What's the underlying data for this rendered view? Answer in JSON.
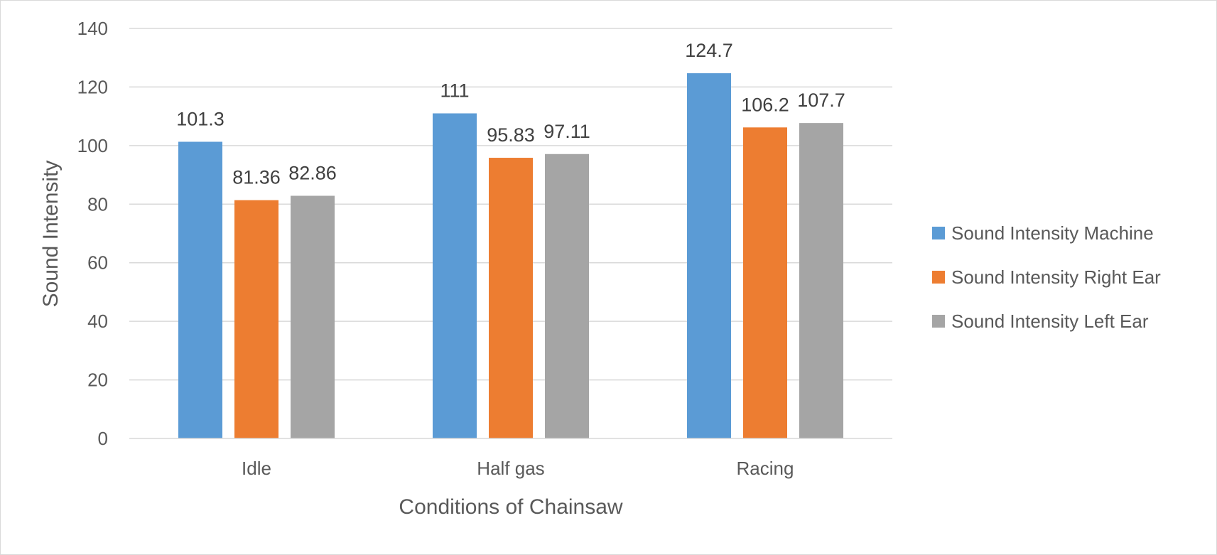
{
  "chart_data": {
    "type": "bar",
    "title": "",
    "xlabel": "Conditions of Chainsaw",
    "ylabel": "Sound Intensity",
    "categories": [
      "Idle",
      "Half gas",
      "Racing"
    ],
    "series": [
      {
        "name": "Sound Intensity Machine",
        "color": "#5b9bd5",
        "values": [
          101.3,
          111,
          124.7
        ],
        "labels": [
          "101.3",
          "111",
          "124.7"
        ]
      },
      {
        "name": "Sound Intensity Right Ear",
        "color": "#ed7d31",
        "values": [
          81.36,
          95.83,
          106.2
        ],
        "labels": [
          "81.36",
          "95.83",
          "106.2"
        ]
      },
      {
        "name": "Sound Intensity Left Ear",
        "color": "#a5a5a5",
        "values": [
          82.86,
          97.11,
          107.7
        ],
        "labels": [
          "82.86",
          "97.11",
          "107.7"
        ]
      }
    ],
    "ylim": [
      0,
      140
    ],
    "yticks": [
      0,
      20,
      40,
      60,
      80,
      100,
      120,
      140
    ],
    "grid": true,
    "gridline_color": "#d9d9d9",
    "legend_position": "right"
  }
}
